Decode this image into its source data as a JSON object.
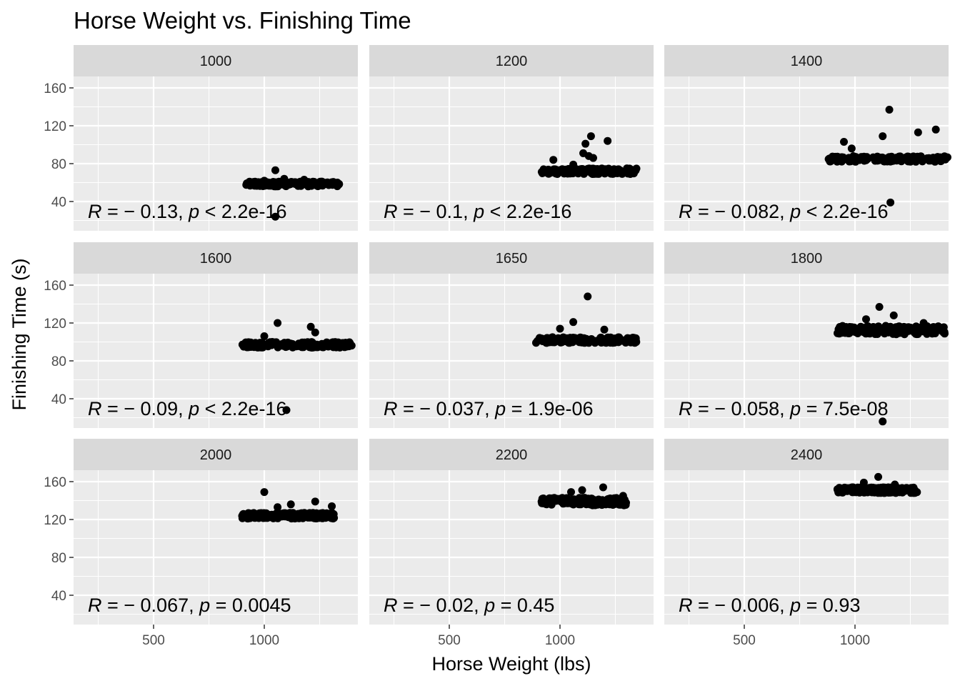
{
  "title": "Horse Weight vs. Finishing Time",
  "chart_data": {
    "type": "scatter",
    "title": "Horse Weight vs. Finishing Time",
    "xlabel": "Horse Weight (lbs)",
    "ylabel": "Finishing Time (s)",
    "xlim": [
      200,
      1500
    ],
    "ylim": [
      8,
      190
    ],
    "x_ticks": [
      500,
      1000
    ],
    "y_ticks": [
      40,
      80,
      120,
      160
    ],
    "grid": true,
    "facets": [
      {
        "label": "1000",
        "r": "0.13",
        "p_op": "<",
        "p": "2.2e-16",
        "cloud": {
          "x0": 915,
          "x1": 1340,
          "y0": 56,
          "y1": 61
        },
        "points": [
          [
            1050,
            73
          ],
          [
            1050,
            24
          ],
          [
            1090,
            64
          ],
          [
            1180,
            63
          ],
          [
            1000,
            62
          ],
          [
            1260,
            61
          ]
        ]
      },
      {
        "label": "1200",
        "r": "0.1",
        "p_op": "<",
        "p": "2.2e-16",
        "cloud": {
          "x0": 915,
          "x1": 1350,
          "y0": 69,
          "y1": 75
        },
        "points": [
          [
            1140,
            109
          ],
          [
            1215,
            104
          ],
          [
            1115,
            101
          ],
          [
            1105,
            91
          ],
          [
            1130,
            88
          ],
          [
            970,
            84
          ],
          [
            1150,
            86
          ],
          [
            1060,
            79
          ]
        ]
      },
      {
        "label": "1400",
        "r": "0.082",
        "p_op": "<",
        "p": "2.2e-16",
        "cloud": {
          "x0": 880,
          "x1": 1420,
          "y0": 82,
          "y1": 88
        },
        "points": [
          [
            1155,
            137
          ],
          [
            1365,
            116
          ],
          [
            1285,
            113
          ],
          [
            1125,
            109
          ],
          [
            950,
            103
          ],
          [
            985,
            96
          ],
          [
            1160,
            39
          ]
        ]
      },
      {
        "label": "1600",
        "r": "0.09",
        "p_op": "<",
        "p": "2.2e-16",
        "cloud": {
          "x0": 900,
          "x1": 1400,
          "y0": 94,
          "y1": 100
        },
        "points": [
          [
            1060,
            120
          ],
          [
            1210,
            116
          ],
          [
            1230,
            110
          ],
          [
            1100,
            28
          ],
          [
            1000,
            106
          ]
        ]
      },
      {
        "label": "1650",
        "r": "0.037",
        "p_op": "=",
        "p": "1.9e-06",
        "cloud": {
          "x0": 890,
          "x1": 1345,
          "y0": 99,
          "y1": 105
        },
        "points": [
          [
            1125,
            148
          ],
          [
            1060,
            121
          ],
          [
            1000,
            114
          ],
          [
            1200,
            113
          ]
        ]
      },
      {
        "label": "1800",
        "r": "0.058",
        "p_op": "=",
        "p": "7.5e-08",
        "cloud": {
          "x0": 920,
          "x1": 1410,
          "y0": 108,
          "y1": 117
        },
        "points": [
          [
            1110,
            137
          ],
          [
            1175,
            128
          ],
          [
            1310,
            120
          ],
          [
            1125,
            16
          ],
          [
            1050,
            124
          ]
        ]
      },
      {
        "label": "2000",
        "r": "0.067",
        "p_op": "=",
        "p": "0.0045",
        "cloud": {
          "x0": 900,
          "x1": 1320,
          "y0": 121,
          "y1": 127
        },
        "points": [
          [
            1000,
            149
          ],
          [
            1230,
            139
          ],
          [
            1305,
            134
          ],
          [
            1120,
            136
          ],
          [
            1060,
            133
          ]
        ]
      },
      {
        "label": "2200",
        "r": "0.02",
        "p_op": "=",
        "p": "0.45",
        "cloud": {
          "x0": 910,
          "x1": 1300,
          "y0": 135,
          "y1": 143
        },
        "points": [
          [
            1195,
            154
          ],
          [
            1100,
            151
          ],
          [
            1050,
            149
          ],
          [
            1285,
            145
          ]
        ]
      },
      {
        "label": "2400",
        "r": "0.006",
        "p_op": "=",
        "p": "0.93",
        "cloud": {
          "x0": 920,
          "x1": 1280,
          "y0": 148,
          "y1": 154
        },
        "points": [
          [
            1105,
            165
          ],
          [
            1275,
            149
          ],
          [
            1040,
            159
          ],
          [
            1180,
            157
          ]
        ]
      }
    ]
  }
}
